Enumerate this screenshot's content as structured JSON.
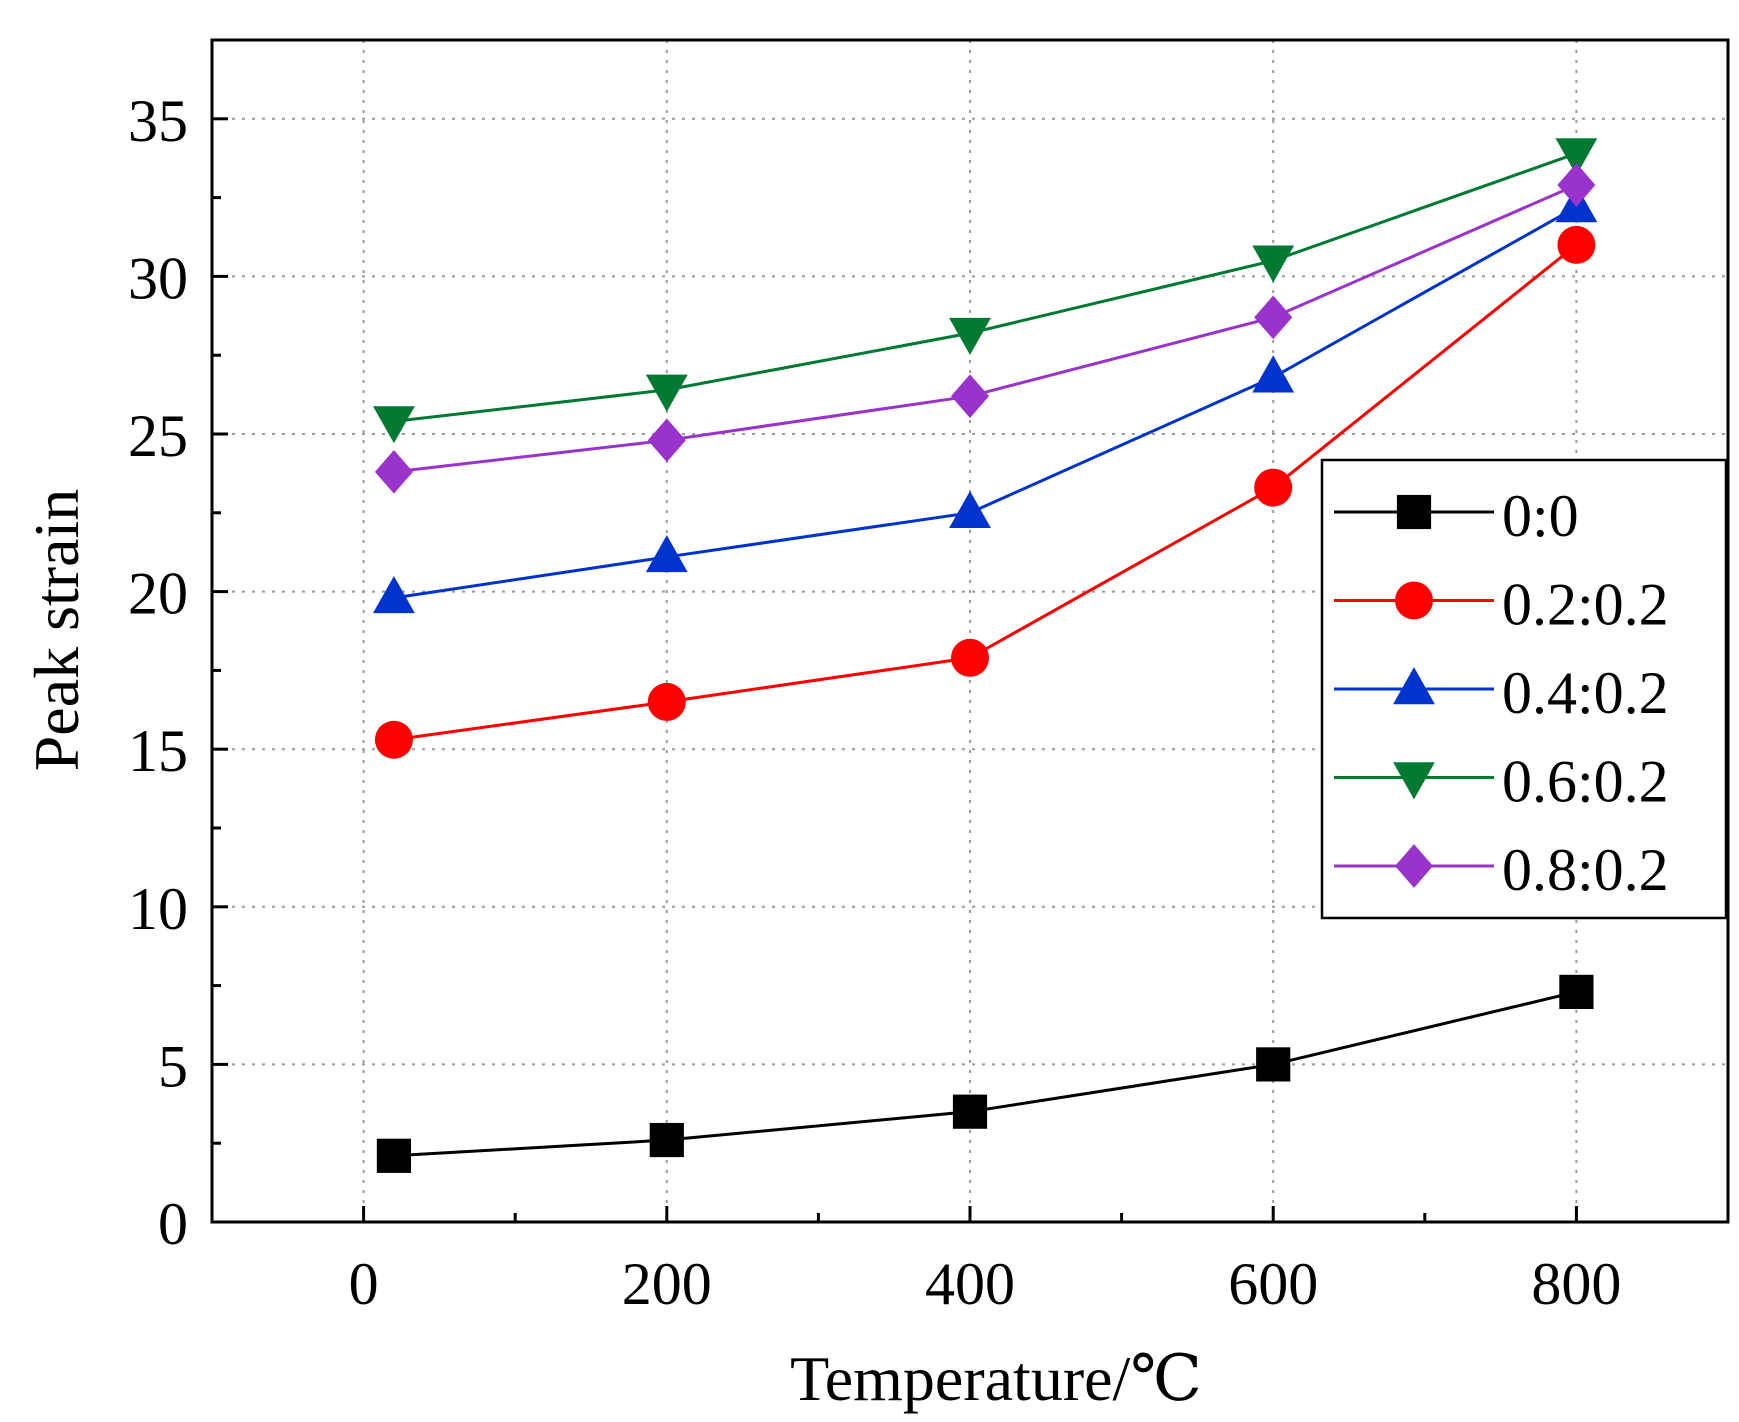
{
  "chart_data": {
    "type": "line",
    "title": "",
    "xlabel": "Temperature/℃",
    "ylabel": "Peak strain",
    "xlim": [
      -100,
      900
    ],
    "ylim": [
      0,
      37.5
    ],
    "xticks": [
      0,
      200,
      400,
      600,
      800
    ],
    "yticks": [
      0,
      5,
      10,
      15,
      20,
      25,
      30,
      35
    ],
    "xtick_labels": [
      "0",
      "200",
      "400",
      "600",
      "800"
    ],
    "ytick_labels": [
      "0",
      "5",
      "10",
      "15",
      "20",
      "25",
      "30",
      "35"
    ],
    "grid": true,
    "legend_position": "right",
    "x": [
      20,
      200,
      400,
      600,
      800
    ],
    "series": [
      {
        "name": "0:0",
        "color": "#000000",
        "marker": "square",
        "values": [
          2.1,
          2.6,
          3.5,
          5.0,
          7.3
        ]
      },
      {
        "name": "0.2:0.2",
        "color": "#ff0000",
        "marker": "circle",
        "values": [
          15.3,
          16.5,
          17.9,
          23.3,
          31.0
        ]
      },
      {
        "name": "0.4:0.2",
        "color": "#0033cc",
        "marker": "triangle-up",
        "values": [
          19.8,
          21.1,
          22.5,
          26.8,
          32.2
        ]
      },
      {
        "name": "0.6:0.2",
        "color": "#007a33",
        "marker": "triangle-down",
        "values": [
          25.4,
          26.4,
          28.2,
          30.5,
          33.9
        ]
      },
      {
        "name": "0.8:0.2",
        "color": "#9933cc",
        "marker": "diamond",
        "values": [
          23.8,
          24.8,
          26.2,
          28.7,
          32.9
        ]
      }
    ]
  }
}
